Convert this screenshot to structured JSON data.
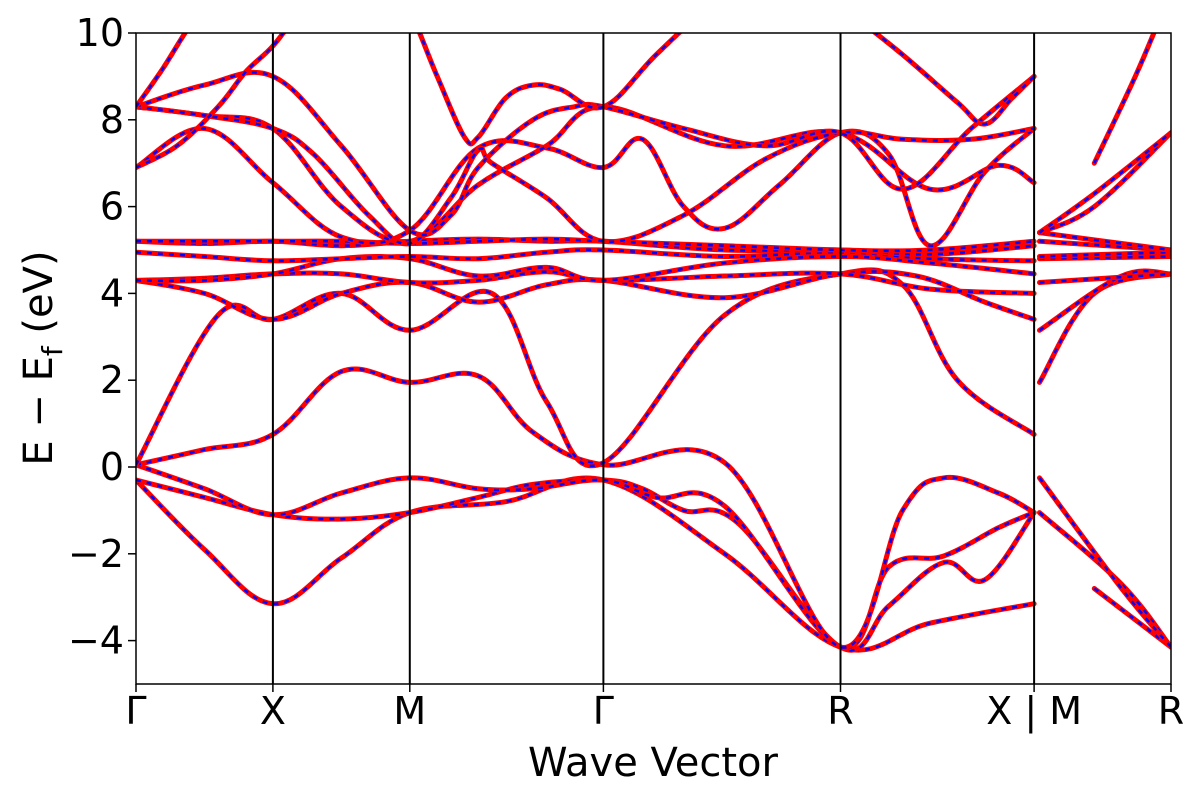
{
  "chart_data": {
    "type": "line",
    "xlabel": "Wave Vector",
    "ylabel_main": "E − E",
    "ylabel_sub": "f",
    "ylabel_unit": " (eV)",
    "ylim": [
      -5,
      10
    ],
    "yticks": [
      -4,
      -2,
      0,
      2,
      4,
      6,
      8,
      10
    ],
    "ytick_labels": [
      "−4",
      "−2",
      "0",
      "2",
      "4",
      "6",
      "8",
      "10"
    ],
    "k_nodes": [
      0,
      1,
      2,
      3.4142,
      5.1463,
      6.5605,
      7.5605
    ],
    "k_labels": [
      "Γ",
      "X",
      "M",
      "Γ",
      "R",
      "X | M",
      "R"
    ],
    "segment_breaks": [
      6.5605
    ],
    "series": [
      {
        "style": "dft_solid",
        "color": "#ff0000",
        "values_ref": "bands"
      },
      {
        "style": "fit_dashed",
        "color": "#0000ff",
        "values_ref": "bands"
      }
    ],
    "bands": [
      {
        "k": [
          0,
          0.5,
          1,
          1.5,
          2,
          2.7,
          3.4142,
          4.3,
          5.1463,
          5.8,
          6.5605,
          7.0,
          7.5605
        ],
        "y": [
          -0.3,
          -1.9,
          -3.15,
          -2.1,
          -1.05,
          -0.8,
          -0.3,
          -2.0,
          -4.15,
          -3.6,
          -3.15,
          -2.8,
          -4.15
        ]
      },
      {
        "k": [
          0,
          0.5,
          1,
          1.5,
          2,
          2.5,
          2.9,
          3.4142,
          3.7,
          4.0,
          4.4,
          5.1463,
          5.5,
          5.9,
          6.2,
          6.5605,
          6.6,
          7.2,
          7.5605
        ],
        "y": [
          -0.3,
          -0.7,
          -1.1,
          -1.2,
          -1.05,
          -0.7,
          -0.4,
          -0.3,
          -0.5,
          -1.0,
          -1.3,
          -4.15,
          -3.2,
          -2.2,
          -2.6,
          -1.05,
          -1.05,
          -2.7,
          -4.15
        ]
      },
      {
        "k": [
          0,
          0.5,
          1,
          1.5,
          2,
          2.5,
          2.9,
          3.4142,
          3.8,
          4.3,
          5.1463,
          5.5,
          5.9,
          6.3,
          6.5605
        ],
        "y": [
          0.05,
          -0.5,
          -1.1,
          -0.6,
          -0.25,
          -0.5,
          -0.5,
          -0.3,
          -0.7,
          -0.9,
          -4.15,
          -2.3,
          -2.05,
          -1.4,
          -1.05
        ]
      },
      {
        "k": [
          0,
          0.5,
          1,
          1.5,
          2,
          2.5,
          2.9,
          3.4142,
          4.3,
          5.1463,
          5.6,
          5.9,
          6.3,
          6.5605,
          6.6,
          7.2,
          7.5605
        ],
        "y": [
          0.05,
          0.4,
          0.75,
          2.2,
          1.95,
          2.1,
          0.8,
          0.05,
          0.1,
          -4.15,
          -1.0,
          -0.25,
          -0.6,
          -1.05,
          -0.25,
          -2.8,
          -4.15
        ]
      },
      {
        "k": [
          0,
          0.6,
          1,
          1.5,
          2,
          2.6,
          3.0,
          3.4142,
          4.3,
          5.1463,
          5.6,
          6.0,
          6.5605,
          6.6,
          7.0,
          7.5605
        ],
        "y": [
          0.05,
          3.5,
          3.4,
          4.0,
          3.15,
          4.0,
          1.5,
          0.1,
          3.5,
          4.45,
          4.2,
          2.0,
          0.75,
          1.95,
          4.0,
          4.45
        ]
      },
      {
        "k": [
          0,
          0.5,
          1,
          1.5,
          2,
          2.5,
          3.0,
          3.4142,
          4.3,
          5.1463,
          5.7,
          6.2,
          6.5605,
          6.6,
          7.2,
          7.5605
        ],
        "y": [
          4.3,
          4.0,
          3.4,
          4.0,
          4.25,
          3.8,
          4.2,
          4.3,
          3.9,
          4.45,
          4.4,
          3.8,
          3.4,
          3.15,
          4.4,
          4.45
        ]
      },
      {
        "k": [
          0,
          0.5,
          1,
          1.5,
          2,
          2.5,
          3.0,
          3.4142,
          4.3,
          5.1463,
          5.8,
          6.5605,
          6.6,
          7.5605
        ],
        "y": [
          4.3,
          4.35,
          4.45,
          4.45,
          4.25,
          4.3,
          4.5,
          4.3,
          4.4,
          4.45,
          4.1,
          4.0,
          4.25,
          4.45
        ]
      },
      {
        "k": [
          0,
          0.5,
          1,
          1.5,
          2,
          2.5,
          3.0,
          3.4142,
          4.3,
          5.1463,
          5.8,
          6.5605,
          6.6,
          7.5605
        ],
        "y": [
          4.3,
          4.3,
          4.45,
          4.8,
          4.8,
          4.4,
          4.6,
          4.3,
          4.7,
          4.85,
          4.7,
          4.45,
          4.8,
          4.85
        ]
      },
      {
        "k": [
          0,
          0.5,
          1,
          1.5,
          2,
          2.5,
          3.0,
          3.4142,
          4.3,
          5.1463,
          5.8,
          6.5605,
          6.6,
          7.5605
        ],
        "y": [
          4.95,
          4.85,
          4.75,
          4.8,
          4.85,
          4.8,
          4.95,
          5.0,
          4.85,
          4.95,
          4.8,
          4.75,
          4.85,
          4.95
        ]
      },
      {
        "k": [
          0,
          0.5,
          1,
          1.5,
          2,
          2.5,
          3.0,
          3.4142,
          4.3,
          5.1463,
          5.8,
          6.5605,
          6.6,
          7.5605
        ],
        "y": [
          5.2,
          5.15,
          5.2,
          5.1,
          5.2,
          5.25,
          5.2,
          5.2,
          5.0,
          5.0,
          4.9,
          5.1,
          5.2,
          5.0
        ]
      },
      {
        "k": [
          0,
          0.5,
          1,
          1.5,
          2,
          2.5,
          3.0,
          3.4142,
          4.3,
          5.1463,
          5.8,
          6.5605,
          6.6,
          7.5605
        ],
        "y": [
          5.2,
          5.2,
          5.2,
          5.2,
          5.15,
          5.2,
          5.25,
          5.2,
          5.1,
          5.0,
          5.0,
          5.2,
          5.4,
          5.0
        ]
      },
      {
        "k": [
          0,
          0.5,
          1,
          1.5,
          2,
          2.5,
          3.0,
          3.4142,
          3.7,
          4.0,
          4.3,
          4.7,
          5.1463,
          5.5,
          5.8,
          6.2,
          6.5605,
          6.6,
          7.0,
          7.5605
        ],
        "y": [
          6.9,
          7.8,
          6.55,
          5.3,
          5.45,
          7.35,
          7.35,
          6.9,
          7.55,
          6.0,
          5.5,
          6.5,
          7.7,
          7.2,
          5.1,
          6.8,
          7.8,
          5.4,
          6.0,
          7.7
        ]
      },
      {
        "k": [
          0,
          0.5,
          1,
          1.5,
          2,
          2.5,
          3.0,
          3.4142,
          4.3,
          5.1463,
          5.8,
          6.3,
          6.5605,
          6.6,
          7.0,
          7.5605
        ],
        "y": [
          8.3,
          8.1,
          7.8,
          6.0,
          5.2,
          6.5,
          7.4,
          8.3,
          7.4,
          7.7,
          6.4,
          6.95,
          6.55,
          5.4,
          6.3,
          7.7
        ]
      },
      {
        "k": [
          0,
          0.5,
          1,
          1.3,
          1.7,
          2,
          2.3,
          2.5,
          2.6,
          3.0,
          3.4142,
          4.0,
          4.6,
          5.1463,
          5.6,
          6.1,
          6.5605
        ],
        "y": [
          8.3,
          8.1,
          7.8,
          7.2,
          5.8,
          5.15,
          6.2,
          7.3,
          7.0,
          6.2,
          5.2,
          5.8,
          7.1,
          7.7,
          7.55,
          7.55,
          7.8
        ]
      },
      {
        "k": [
          0,
          0.5,
          1,
          1.5,
          2,
          2.3,
          2.5,
          2.9,
          3.2,
          3.4142,
          4.0,
          4.6,
          5.1463,
          5.6,
          6.1,
          6.5605
        ],
        "y": [
          8.3,
          8.8,
          9.0,
          7.4,
          5.45,
          5.8,
          6.9,
          8.0,
          8.3,
          8.3,
          7.8,
          7.4,
          7.7,
          6.4,
          7.8,
          9.0
        ]
      },
      {
        "k": [
          0,
          0.3,
          0.6,
          0.8,
          1.0,
          1.2,
          1.4,
          1.6,
          1.8
        ],
        "y": [
          6.9,
          7.4,
          8.3,
          9.1,
          9.7,
          10.5,
          11.0,
          11.5,
          12.0
        ]
      },
      {
        "k": [
          0,
          0.2,
          0.4,
          0.6
        ],
        "y": [
          8.3,
          9.2,
          10.2,
          11.0
        ]
      },
      {
        "k": [
          1.7,
          1.85,
          2.0,
          2.2,
          2.4,
          2.5,
          2.7,
          2.9,
          3.1,
          3.4142,
          3.8,
          4.3
        ],
        "y": [
          12.0,
          11.0,
          10.5,
          9.0,
          7.6,
          7.6,
          8.5,
          8.8,
          8.7,
          8.3,
          9.5,
          11.0
        ]
      },
      {
        "k": [
          4.7,
          4.9,
          5.0
        ],
        "y": [
          11.0,
          10.5,
          10.2
        ]
      },
      {
        "k": [
          5.2,
          5.6,
          6.0,
          6.2,
          6.4,
          6.5605
        ],
        "y": [
          10.5,
          9.5,
          8.4,
          7.9,
          8.5,
          9.0
        ]
      },
      {
        "k": [
          7.0,
          7.3,
          7.5
        ],
        "y": [
          7.0,
          9.0,
          10.5
        ]
      }
    ]
  }
}
